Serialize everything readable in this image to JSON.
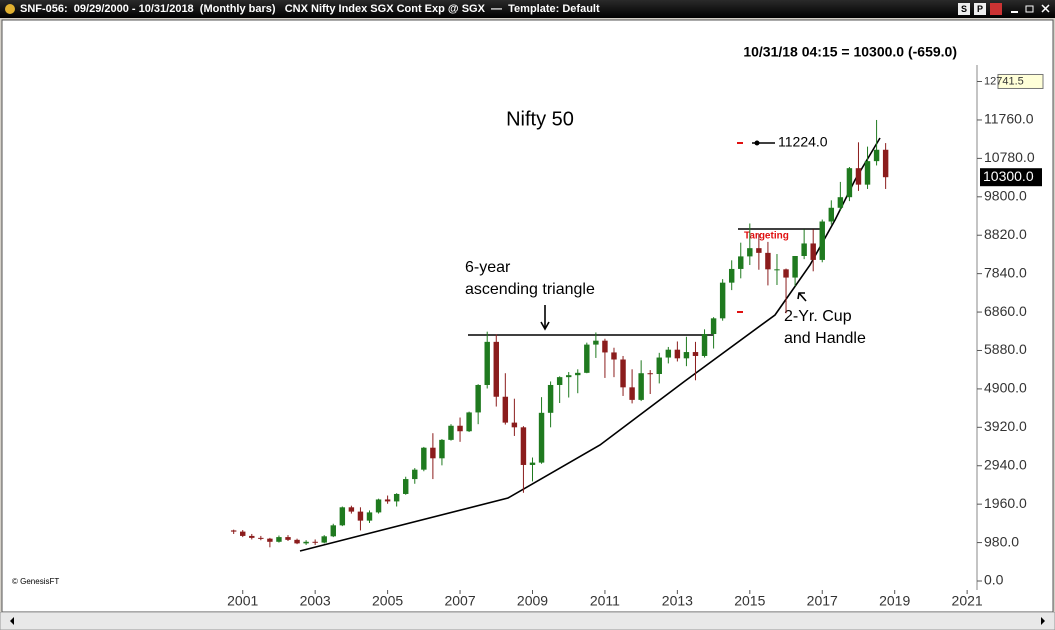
{
  "window": {
    "title": "SNF-056:  09/29/2000 - 10/31/2018  (Monthly bars)   CNX Nifty Index SGX Cont Exp @ SGX  —  Template: Default",
    "buttons": [
      "S",
      "P"
    ]
  },
  "chart_data": {
    "type": "candlestick",
    "title": "Nifty 50",
    "header": "10/31/18 04:15 = 10300.0 (-659.0)",
    "copyright": "© GenesisFT",
    "annotations": [
      "6-year",
      "ascending triangle",
      "2-Yr. Cup",
      "and Handle",
      "Targeting",
      "11224.0"
    ],
    "up_color": "#1f7a1f",
    "down_color": "#8b1c1c",
    "x": [
      2000.75,
      2001.0,
      2001.25,
      2001.5,
      2001.75,
      2002.0,
      2002.25,
      2002.5,
      2002.75,
      2003.0,
      2003.25,
      2003.5,
      2003.75,
      2004.0,
      2004.25,
      2004.5,
      2004.75,
      2005.0,
      2005.25,
      2005.5,
      2005.75,
      2006.0,
      2006.25,
      2006.5,
      2006.75,
      2007.0,
      2007.25,
      2007.5,
      2007.75,
      2008.0,
      2008.25,
      2008.5,
      2008.75,
      2009.0,
      2009.25,
      2009.5,
      2009.75,
      2010.0,
      2010.25,
      2010.5,
      2010.75,
      2011.0,
      2011.25,
      2011.5,
      2011.75,
      2012.0,
      2012.25,
      2012.5,
      2012.75,
      2013.0,
      2013.25,
      2013.5,
      2013.75,
      2014.0,
      2014.25,
      2014.5,
      2014.75,
      2015.0,
      2015.25,
      2015.5,
      2015.75,
      2016.0,
      2016.25,
      2016.5,
      2016.75,
      2017.0,
      2017.25,
      2017.5,
      2017.75,
      2018.0,
      2018.25,
      2018.5,
      2018.75
    ],
    "open": [
      1290,
      1260,
      1150,
      1100,
      1080,
      1000,
      1120,
      1050,
      960,
      1000,
      980,
      1140,
      1420,
      1880,
      1770,
      1540,
      1750,
      2080,
      2030,
      2220,
      2600,
      2840,
      3400,
      3130,
      3600,
      3960,
      3820,
      4300,
      5000,
      6100,
      4700,
      4040,
      3920,
      2960,
      3020,
      4290,
      5000,
      5200,
      5250,
      5310,
      6030,
      6130,
      5830,
      5650,
      4940,
      4620,
      5300,
      5280,
      5700,
      5900,
      5680,
      5840,
      5740,
      6300,
      6700,
      7610,
      7960,
      8280,
      8490,
      8370,
      7950,
      7950,
      7740,
      8290,
      8610,
      8190,
      9170,
      9520,
      9790,
      10530,
      10110,
      10710,
      11000
    ],
    "high": [
      1310,
      1300,
      1200,
      1150,
      1100,
      1160,
      1170,
      1080,
      1040,
      1060,
      1170,
      1460,
      1900,
      1920,
      1880,
      1800,
      2100,
      2180,
      2240,
      2660,
      2880,
      3420,
      3770,
      3620,
      4000,
      4170,
      4320,
      5020,
      6360,
      6290,
      5300,
      4650,
      3950,
      3150,
      4690,
      5090,
      5220,
      5330,
      5400,
      6080,
      6340,
      6180,
      5950,
      5740,
      5400,
      5630,
      5380,
      5820,
      5970,
      6110,
      6230,
      6100,
      6420,
      6730,
      7700,
      8180,
      8630,
      9120,
      8850,
      8650,
      8340,
      7970,
      8290,
      8970,
      8970,
      9220,
      9710,
      10180,
      10560,
      11190,
      11080,
      11760,
      11170
    ],
    "low": [
      1200,
      1120,
      1060,
      1040,
      860,
      980,
      1020,
      940,
      920,
      920,
      960,
      1120,
      1400,
      1720,
      1290,
      1480,
      1720,
      1970,
      1900,
      2200,
      2480,
      2800,
      2600,
      2950,
      3580,
      3550,
      3800,
      4000,
      4910,
      4450,
      3990,
      3700,
      2250,
      2540,
      2990,
      3920,
      4540,
      4680,
      4790,
      5300,
      5690,
      5180,
      5200,
      4720,
      4530,
      4590,
      4770,
      5040,
      5550,
      5600,
      5480,
      5120,
      5700,
      5930,
      6640,
      7420,
      7720,
      8060,
      7940,
      7540,
      7550,
      6830,
      7520,
      8210,
      7900,
      8130,
      9090,
      9440,
      9690,
      9950,
      10000,
      10600,
      10000
    ],
    "close": [
      1260,
      1150,
      1100,
      1080,
      1000,
      1120,
      1050,
      960,
      1000,
      980,
      1140,
      1420,
      1880,
      1770,
      1540,
      1750,
      2080,
      2030,
      2220,
      2600,
      2840,
      3400,
      3130,
      3600,
      3960,
      3820,
      4300,
      5000,
      6100,
      4700,
      4040,
      3920,
      2960,
      3020,
      4290,
      5000,
      5200,
      5250,
      5310,
      6030,
      6130,
      5830,
      5650,
      4940,
      4620,
      5300,
      5280,
      5700,
      5900,
      5680,
      5840,
      5740,
      6300,
      6700,
      7610,
      7960,
      8280,
      8490,
      8370,
      7950,
      7950,
      7740,
      8290,
      8610,
      8190,
      9170,
      9520,
      9790,
      10530,
      10110,
      10710,
      11000,
      10300
    ],
    "last_label": "10300.0",
    "xlim": [
      1994.63,
      2021.3
    ],
    "xticks": [
      2001,
      2003,
      2005,
      2007,
      2009,
      2011,
      2013,
      2015,
      2017,
      2019,
      2021
    ],
    "ylim": [
      0,
      13162
    ],
    "yticks": [
      {
        "value": 0,
        "label": "0.0"
      },
      {
        "value": 980,
        "label": "980.0"
      },
      {
        "value": 1960,
        "label": "1960.0"
      },
      {
        "value": 2940,
        "label": "2940.0"
      },
      {
        "value": 3920,
        "label": "3920.0"
      },
      {
        "value": 4900,
        "label": "4900.0"
      },
      {
        "value": 5880,
        "label": "5880.0"
      },
      {
        "value": 6860,
        "label": "6860.0"
      },
      {
        "value": 7840,
        "label": "7840.0"
      },
      {
        "value": 8820,
        "label": "8820.0"
      },
      {
        "value": 9800,
        "label": "9800.0"
      },
      {
        "value": 10780,
        "label": "10780.0"
      },
      {
        "value": 11760,
        "label": "11760.0"
      },
      12741.5
    ]
  }
}
